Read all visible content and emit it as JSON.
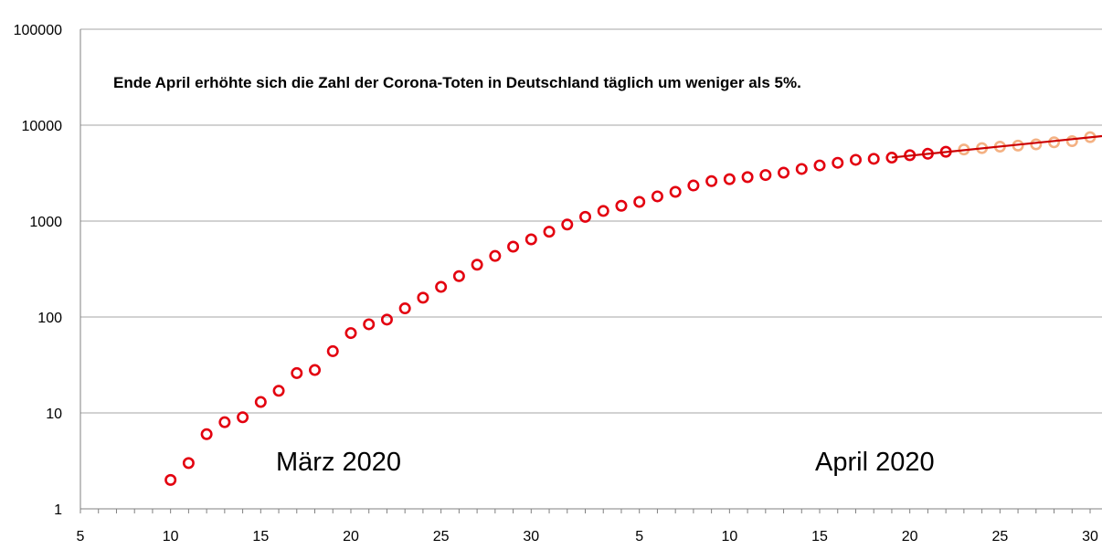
{
  "colors": {
    "observed": "#e3000f",
    "projected": "#f4b183",
    "trend_line": "#cc0000",
    "grid": "#a6a6a6",
    "axis": "#808080"
  },
  "chart_data": {
    "type": "scatter",
    "title": "",
    "xlabel": "",
    "ylabel": "",
    "yscale": "log",
    "ylim": [
      1,
      100000
    ],
    "xlim": [
      "2020-03-05",
      "2020-04-30"
    ],
    "grid": {
      "horizontal": true,
      "vertical": false
    },
    "legend": "none",
    "x_tick_labels": [
      "5",
      "10",
      "15",
      "20",
      "25",
      "30",
      "5",
      "10",
      "15",
      "20",
      "25",
      "30"
    ],
    "x_tick_dates": [
      "2020-03-05",
      "2020-03-10",
      "2020-03-15",
      "2020-03-20",
      "2020-03-25",
      "2020-03-30",
      "2020-04-05",
      "2020-04-10",
      "2020-04-15",
      "2020-04-20",
      "2020-04-25",
      "2020-04-30"
    ],
    "y_tick_labels": [
      "1",
      "10",
      "100",
      "1000",
      "10000",
      "100000"
    ],
    "y_tick_values": [
      1,
      10,
      100,
      1000,
      10000,
      100000
    ],
    "annotation": "Ende April  erhöhte sich die Zahl der Corona-Toten in Deutschland täglich um weniger als 5%.",
    "month_labels": [
      "März 2020",
      "April 2020"
    ],
    "series": [
      {
        "marker": "open-circle",
        "x": [
          "2020-03-10",
          "2020-03-11",
          "2020-03-12",
          "2020-03-13",
          "2020-03-14",
          "2020-03-15",
          "2020-03-16",
          "2020-03-17",
          "2020-03-18",
          "2020-03-19",
          "2020-03-20",
          "2020-03-21",
          "2020-03-22",
          "2020-03-23",
          "2020-03-24",
          "2020-03-25",
          "2020-03-26",
          "2020-03-27",
          "2020-03-28",
          "2020-03-29",
          "2020-03-30",
          "2020-03-31",
          "2020-04-01",
          "2020-04-02",
          "2020-04-03",
          "2020-04-04",
          "2020-04-05",
          "2020-04-06",
          "2020-04-07",
          "2020-04-08",
          "2020-04-09",
          "2020-04-10",
          "2020-04-11",
          "2020-04-12",
          "2020-04-13",
          "2020-04-14",
          "2020-04-15",
          "2020-04-16",
          "2020-04-17",
          "2020-04-18",
          "2020-04-19",
          "2020-04-20",
          "2020-04-21",
          "2020-04-22"
        ],
        "y": [
          2,
          3,
          6,
          8,
          9,
          13,
          17,
          26,
          28,
          44,
          68,
          84,
          94,
          123,
          159,
          206,
          267,
          351,
          433,
          541,
          645,
          775,
          920,
          1107,
          1275,
          1444,
          1584,
          1810,
          2016,
          2349,
          2607,
          2736,
          2871,
          3022,
          3194,
          3495,
          3804,
          4052,
          4352,
          4459,
          4586,
          4862,
          5033,
          5279
        ]
      },
      {
        "marker": "open-circle",
        "x": [
          "2020-04-23",
          "2020-04-24",
          "2020-04-25",
          "2020-04-26",
          "2020-04-27",
          "2020-04-28",
          "2020-04-29",
          "2020-04-30"
        ],
        "y": [
          5575,
          5760,
          5976,
          6126,
          6314,
          6623,
          6812,
          7500
        ]
      },
      {
        "marker": "line",
        "x": [
          "2020-04-19",
          "2020-05-01"
        ],
        "y": [
          4600,
          7800
        ]
      }
    ]
  }
}
